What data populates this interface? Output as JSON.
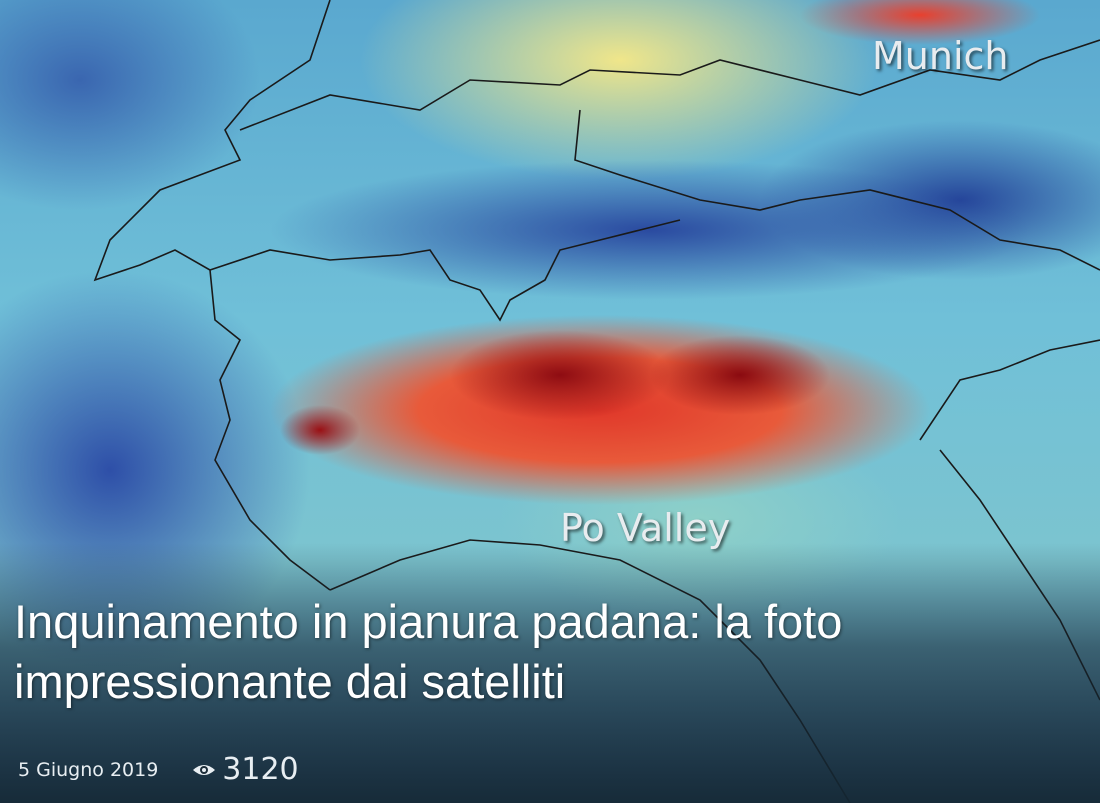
{
  "article": {
    "title": "Inquinamento in pianura padana: la foto impressionante dai satelliti",
    "date": "5 Giugno 2019",
    "views": "3120",
    "views_icon": "eye-icon"
  },
  "image": {
    "labels": {
      "munich": "Munich",
      "po_valley": "Po Valley"
    }
  }
}
